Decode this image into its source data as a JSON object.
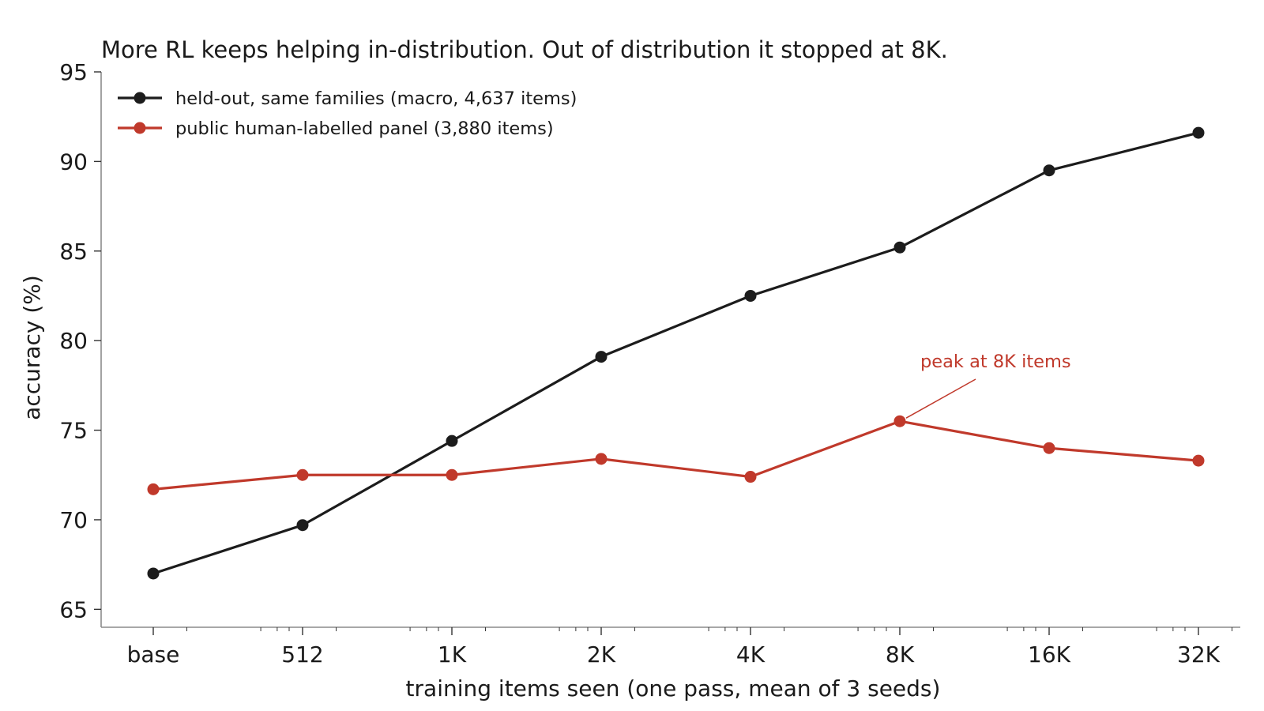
{
  "chart_data": {
    "type": "line",
    "title": "More RL keeps helping in-distribution. Out of distribution it stopped at 8K.",
    "xlabel": "training items seen (one pass, mean of 3 seeds)",
    "ylabel": "accuracy (%)",
    "categories": [
      "base",
      "512",
      "1K",
      "2K",
      "4K",
      "8K",
      "16K",
      "32K"
    ],
    "ylim": [
      64,
      95
    ],
    "yticks": [
      65,
      70,
      75,
      80,
      85,
      90,
      95
    ],
    "grid": false,
    "legend_position": "top-left",
    "series": [
      {
        "name": "held-out, same families (macro, 4,637 items)",
        "color": "#1c1c1c",
        "values": [
          67.0,
          69.7,
          74.4,
          79.1,
          82.5,
          85.2,
          89.5,
          91.6
        ]
      },
      {
        "name": "public human-labelled panel (3,880 items)",
        "color": "#c0392b",
        "values": [
          71.7,
          72.5,
          72.5,
          73.4,
          72.4,
          75.5,
          74.0,
          73.3
        ]
      }
    ],
    "annotations": [
      {
        "text": "peak at 8K items",
        "series": 1,
        "category": "8K",
        "color": "#c0392b"
      }
    ]
  }
}
